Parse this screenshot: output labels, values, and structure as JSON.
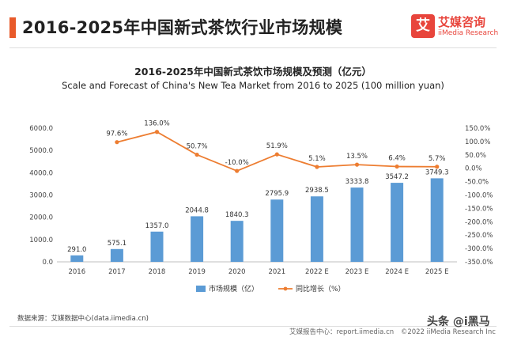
{
  "header": {
    "title": "2016-2025年中国新式茶饮行业市场规模",
    "logo_cn": "艾媒咨询",
    "logo_en": "iiMedia Research",
    "logo_mark": "艾"
  },
  "chart_data": {
    "type": "bar",
    "title": "2016-2025年中国新式茶饮市场规模及预测（亿元）",
    "subtitle": "Scale and Forecast of China's New Tea Market from 2016 to 2025 (100 million yuan)",
    "categories": [
      "2016",
      "2017",
      "2018",
      "2019",
      "2020",
      "2021",
      "2022 E",
      "2023 E",
      "2024 E",
      "2025 E"
    ],
    "series": [
      {
        "name": "市场规模（亿）",
        "type": "bar",
        "axis": "left",
        "color": "#5b9bd5",
        "values": [
          291.0,
          575.1,
          1357.0,
          2044.8,
          1840.3,
          2795.9,
          2938.5,
          3333.8,
          3547.2,
          3749.3
        ],
        "labels": [
          "291.0",
          "575.1",
          "1357.0",
          "2044.8",
          "1840.3",
          "2795.9",
          "2938.5",
          "3333.8",
          "3547.2",
          "3749.3"
        ]
      },
      {
        "name": "同比增长（%）",
        "type": "line",
        "axis": "right",
        "color": "#ed7d31",
        "values": [
          null,
          97.6,
          136.0,
          50.7,
          -10.0,
          51.9,
          5.1,
          13.5,
          6.4,
          5.7
        ],
        "labels": [
          "",
          "97.6%",
          "136.0%",
          "50.7%",
          "-10.0%",
          "51.9%",
          "5.1%",
          "13.5%",
          "6.4%",
          "5.7%"
        ]
      }
    ],
    "y_left": {
      "min": 0,
      "max": 6000,
      "ticks": [
        "0.0",
        "1000.0",
        "2000.0",
        "3000.0",
        "4000.0",
        "5000.0",
        "6000.0"
      ]
    },
    "y_right": {
      "min": -350,
      "max": 150,
      "ticks": [
        "-350.0%",
        "-300.0%",
        "-250.0%",
        "-200.0%",
        "-150.0%",
        "-100.0%",
        "-50.0%",
        "0.0%",
        "50.0%",
        "100.0%",
        "150.0%"
      ]
    },
    "grid": false,
    "legend_position": "bottom-center"
  },
  "source_text": "数据来源：艾媒数据中心(data.iimedia.cn)",
  "footer": {
    "report_center": "艾媒报告中心：report.iimedia.cn",
    "copyright": "©2022  iiMedia Research  Inc"
  },
  "watermark": "头条 @i黑马"
}
